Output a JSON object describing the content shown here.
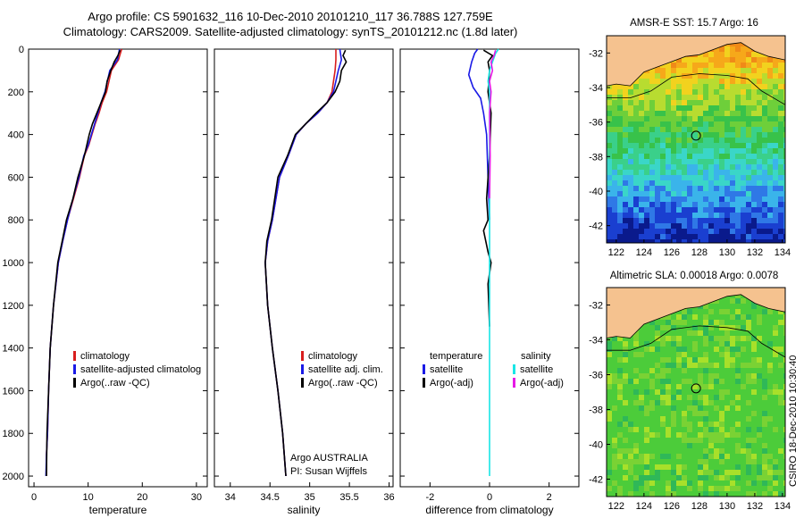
{
  "header": {
    "title_line1": "Argo profile: CS 5901632_116 10-Dec-2010 20101210_117 36.788S 127.759E",
    "title_line2": "Climatology: CARS2009. Satellite-adjusted climatology: synTS_20101212.nc (1.8d later)"
  },
  "footer": {
    "argo_country": "Argo AUSTRALIA",
    "argo_pi": "PI: Susan Wijffels",
    "stamp": "CSIRO 18-Dec-2010 10:30:40"
  },
  "colors": {
    "climatology": "#d81e1e",
    "satellite": "#1a1ae6",
    "argo": "#000000",
    "salinity_satellite": "#19e6e6",
    "salinity_argo": "#e619e6",
    "land": "#f5c28f"
  },
  "chart_data": [
    {
      "type": "line",
      "panel": "temperature",
      "xlabel": "temperature",
      "ylabel": "",
      "xlim": [
        -1,
        32
      ],
      "ylim": [
        2050,
        0
      ],
      "xticks": [
        0,
        10,
        20,
        30
      ],
      "yticks": [
        0,
        200,
        400,
        600,
        800,
        1000,
        1200,
        1400,
        1600,
        1800,
        2000
      ],
      "legend": [
        "climatology",
        "satellite-adjusted climatolog",
        "Argo(..raw -QC)"
      ],
      "series": [
        {
          "name": "climatology",
          "color": "#d81e1e",
          "x": [
            16.2,
            15.6,
            14.3,
            13.4,
            12.6,
            12.0,
            11.3,
            10.7,
            10.1,
            9.3,
            8.4,
            7.3,
            6.2,
            5.3,
            4.5,
            3.6,
            3.0,
            2.7,
            2.5,
            2.3,
            2.3
          ],
          "y": [
            0,
            50,
            100,
            200,
            250,
            300,
            350,
            400,
            450,
            500,
            600,
            700,
            800,
            900,
            1000,
            1200,
            1400,
            1600,
            1800,
            1900,
            2000
          ]
        },
        {
          "name": "satellite-adjusted climatolog",
          "color": "#1a1ae6",
          "x": [
            15.8,
            15.4,
            14.0,
            13.1,
            12.4,
            11.8,
            11.2,
            10.6,
            10.0,
            9.2,
            8.3,
            7.2,
            6.2,
            5.3,
            4.5,
            3.6,
            3.0,
            2.7,
            2.5,
            2.3,
            2.2
          ],
          "y": [
            0,
            50,
            100,
            200,
            250,
            300,
            350,
            400,
            450,
            500,
            600,
            700,
            800,
            900,
            1000,
            1200,
            1400,
            1600,
            1800,
            1900,
            2000
          ]
        },
        {
          "name": "Argo(..raw -QC)",
          "color": "#000000",
          "x": [
            15.9,
            15.5,
            14.8,
            14.2,
            13.5,
            13.2,
            12.4,
            11.6,
            10.8,
            10.2,
            9.3,
            8.1,
            7.2,
            6.0,
            5.2,
            4.4,
            3.6,
            3.0,
            2.7,
            2.4,
            2.3
          ],
          "y": [
            5,
            30,
            60,
            100,
            150,
            200,
            250,
            300,
            350,
            400,
            500,
            600,
            700,
            800,
            900,
            1000,
            1200,
            1400,
            1600,
            1800,
            2000
          ]
        }
      ]
    },
    {
      "type": "line",
      "panel": "salinity",
      "xlabel": "salinity",
      "ylabel": "",
      "xlim": [
        33.8,
        36.05
      ],
      "ylim": [
        2050,
        0
      ],
      "xticks": [
        34,
        34.5,
        35,
        35.5,
        36
      ],
      "legend": [
        "climatology",
        "satellite adj. clim.",
        "Argo(..raw -QC)"
      ],
      "series": [
        {
          "name": "climatology",
          "color": "#d81e1e",
          "x": [
            35.33,
            35.33,
            35.32,
            35.28,
            35.22,
            35.1,
            34.95,
            34.83,
            34.73,
            34.62,
            34.53,
            34.47,
            34.44,
            34.47,
            34.53,
            34.6,
            34.66,
            34.7
          ],
          "y": [
            0,
            50,
            100,
            200,
            250,
            300,
            350,
            400,
            500,
            600,
            800,
            900,
            1000,
            1200,
            1400,
            1600,
            1800,
            2000
          ]
        },
        {
          "name": "satellite adj. clim.",
          "color": "#1a1ae6",
          "x": [
            35.38,
            35.4,
            35.36,
            35.3,
            35.22,
            35.1,
            34.95,
            34.83,
            34.73,
            34.62,
            34.53,
            34.47,
            34.44,
            34.47,
            34.53,
            34.6,
            34.66,
            34.7
          ],
          "y": [
            0,
            50,
            100,
            200,
            250,
            300,
            350,
            400,
            500,
            600,
            800,
            900,
            1000,
            1200,
            1400,
            1600,
            1800,
            2000
          ]
        },
        {
          "name": "Argo(..raw -QC)",
          "color": "#000000",
          "x": [
            35.45,
            35.42,
            35.46,
            35.4,
            35.38,
            35.32,
            35.22,
            35.08,
            34.95,
            34.82,
            34.72,
            34.6,
            34.52,
            34.46,
            34.44,
            34.47,
            34.53,
            34.6,
            34.66,
            34.7
          ],
          "y": [
            5,
            30,
            60,
            100,
            150,
            200,
            250,
            300,
            350,
            400,
            500,
            600,
            800,
            900,
            1000,
            1200,
            1400,
            1600,
            1800,
            2000
          ]
        }
      ]
    },
    {
      "type": "line",
      "panel": "difference",
      "xlabel": "difference from climatology",
      "ylabel": "",
      "xlim": [
        -3,
        3
      ],
      "ylim": [
        2050,
        0
      ],
      "xticks": [
        -2,
        0,
        2
      ],
      "legend": [
        "temperature",
        "satellite",
        "Argo(-adj)",
        "salinity",
        "satellite",
        "Argo(-adj)"
      ],
      "series": [
        {
          "name": "temperature satellite",
          "color": "#1a1ae6",
          "x": [
            -0.4,
            -0.5,
            -0.6,
            -0.7,
            -0.55,
            -0.3,
            -0.2,
            -0.1,
            -0.05,
            0.0
          ],
          "y": [
            0,
            20,
            60,
            120,
            180,
            230,
            300,
            400,
            600,
            800
          ]
        },
        {
          "name": "temperature Argo(-adj)",
          "color": "#000000",
          "x": [
            -0.2,
            0.1,
            -0.05,
            0.0,
            -0.05,
            0.05,
            0.0,
            -0.1,
            -0.05,
            -0.2,
            -0.05,
            0.05,
            -0.05,
            0.0
          ],
          "y": [
            5,
            30,
            60,
            100,
            200,
            300,
            500,
            700,
            800,
            850,
            950,
            1000,
            1100,
            1300
          ]
        },
        {
          "name": "salinity satellite",
          "color": "#19e6e6",
          "x": [
            0.3,
            0.2,
            0.1,
            0.0,
            -0.05,
            0.0,
            0.0,
            0.0,
            0.0,
            0.0,
            0.0
          ],
          "y": [
            0,
            20,
            60,
            100,
            150,
            200,
            400,
            600,
            1000,
            1500,
            2000
          ]
        },
        {
          "name": "salinity Argo(-adj)",
          "color": "#e619e6",
          "x": [
            0.2,
            0.15,
            0.05,
            0.1,
            0.0,
            0.05,
            0.0,
            0.02,
            0.0
          ],
          "y": [
            5,
            30,
            60,
            100,
            150,
            200,
            300,
            500,
            700
          ]
        }
      ]
    },
    {
      "type": "heatmap",
      "panel": "sst_map",
      "title": "AMSR-E SST: 15.7 Argo: 16",
      "xticks": [
        122,
        124,
        126,
        128,
        130,
        132,
        134
      ],
      "yticks": [
        -32,
        -34,
        -36,
        -38,
        -40,
        -42
      ],
      "xlim": [
        121.3,
        134.2
      ],
      "ylim": [
        -43,
        -31
      ],
      "argo_position": [
        127.759,
        -36.788
      ],
      "land_color": "#f5c28f"
    },
    {
      "type": "heatmap",
      "panel": "sla_map",
      "title": "Altimetric SLA: 0.00018 Argo: 0.0078",
      "xticks": [
        122,
        124,
        126,
        128,
        130,
        132,
        134
      ],
      "yticks": [
        -32,
        -34,
        -36,
        -38,
        -40,
        -42
      ],
      "xlim": [
        121.3,
        134.2
      ],
      "ylim": [
        -43,
        -31
      ],
      "argo_position": [
        127.759,
        -36.788
      ],
      "land_color": "#f5c28f"
    }
  ]
}
